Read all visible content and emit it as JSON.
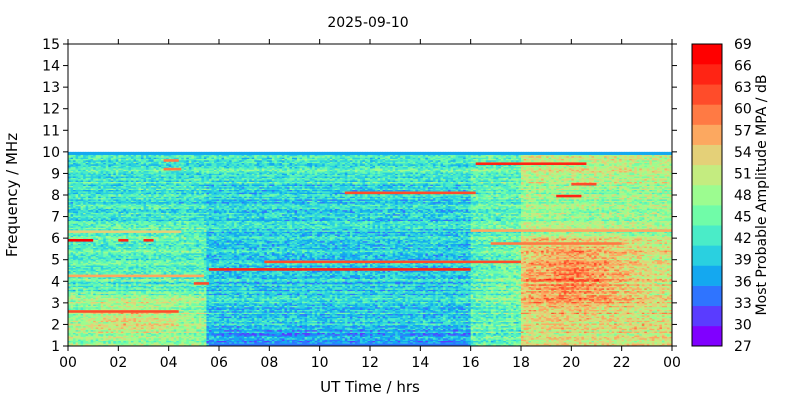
{
  "chart_data": {
    "type": "heatmap",
    "title": "2025-09-10",
    "xlabel": "UT Time / hrs",
    "ylabel": "Frequency / MHz",
    "xlim": [
      0,
      24
    ],
    "ylim": [
      1,
      15
    ],
    "xticks": [
      "00",
      "02",
      "04",
      "06",
      "08",
      "10",
      "12",
      "14",
      "16",
      "18",
      "20",
      "22",
      "00"
    ],
    "yticks": [
      "1",
      "2",
      "3",
      "4",
      "5",
      "6",
      "7",
      "8",
      "9",
      "10",
      "11",
      "12",
      "13",
      "14",
      "15"
    ],
    "data_freq_range": [
      1,
      10
    ],
    "colorbar": {
      "label": "Most Probable Amplitude MPA / dB",
      "ticks": [
        "27",
        "30",
        "33",
        "36",
        "39",
        "42",
        "45",
        "48",
        "51",
        "54",
        "57",
        "60",
        "63",
        "66",
        "69"
      ],
      "colors": [
        "#8000ff",
        "#5a3cff",
        "#2f74ff",
        "#14a8f0",
        "#2ad0e0",
        "#4aecc8",
        "#70fca8",
        "#9cfc90",
        "#c4ec80",
        "#e4d078",
        "#fca860",
        "#ff7a44",
        "#ff4c2a",
        "#ff2414",
        "#ff0000"
      ]
    },
    "bands": [
      {
        "f": 1.05,
        "t0": 5.6,
        "t1": 15.9,
        "v": 33
      },
      {
        "f": 2.6,
        "t0": 0.0,
        "t1": 4.4,
        "v": 62
      },
      {
        "f": 3.9,
        "t0": 5.0,
        "t1": 5.6,
        "v": 62
      },
      {
        "f": 4.25,
        "t0": 0.0,
        "t1": 5.4,
        "v": 55
      },
      {
        "f": 4.55,
        "t0": 5.6,
        "t1": 16.0,
        "v": 66
      },
      {
        "f": 4.9,
        "t0": 7.8,
        "t1": 18.0,
        "v": 62
      },
      {
        "f": 5.9,
        "t0": 0.0,
        "t1": 1.0,
        "v": 68
      },
      {
        "f": 5.9,
        "t0": 2.0,
        "t1": 2.4,
        "v": 66
      },
      {
        "f": 5.9,
        "t0": 3.0,
        "t1": 3.4,
        "v": 64
      },
      {
        "f": 6.3,
        "t0": 0.0,
        "t1": 4.5,
        "v": 54
      },
      {
        "f": 5.75,
        "t0": 16.8,
        "t1": 22.0,
        "v": 60
      },
      {
        "f": 6.35,
        "t0": 16.0,
        "t1": 24.0,
        "v": 55
      },
      {
        "f": 8.1,
        "t0": 11.0,
        "t1": 16.2,
        "v": 62
      },
      {
        "f": 7.95,
        "t0": 19.4,
        "t1": 20.4,
        "v": 66
      },
      {
        "f": 8.5,
        "t0": 20.0,
        "t1": 21.0,
        "v": 63
      },
      {
        "f": 9.45,
        "t0": 16.2,
        "t1": 20.6,
        "v": 64
      },
      {
        "f": 9.6,
        "t0": 3.8,
        "t1": 4.4,
        "v": 60
      },
      {
        "f": 9.2,
        "t0": 3.8,
        "t1": 4.5,
        "v": 58
      }
    ]
  }
}
